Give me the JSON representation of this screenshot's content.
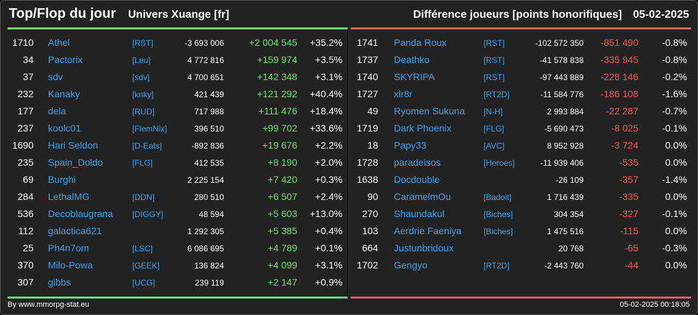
{
  "header": {
    "title": "Top/Flop du jour",
    "subtitle": "Univers Xuange [fr]",
    "metric": "Différence joueurs [points honorifiques]",
    "date": "05-02-2025"
  },
  "colors": {
    "positive": "#6fe26f",
    "negative": "#f05a4f",
    "name": "#3aa3ee",
    "background": "#222222"
  },
  "top": [
    {
      "rank": "1710",
      "name": "Athel",
      "ally": "[RST]",
      "total": "-3 693 006",
      "diff": "+2 004 545",
      "pct": "+35.2%"
    },
    {
      "rank": "34",
      "name": "Pactorix",
      "ally": "[Leu]",
      "total": "4 772 816",
      "diff": "+159 974",
      "pct": "+3.5%"
    },
    {
      "rank": "37",
      "name": "sdv",
      "ally": "[sdv]",
      "total": "4 700 651",
      "diff": "+142 348",
      "pct": "+3.1%"
    },
    {
      "rank": "232",
      "name": "Kanaky",
      "ally": "[knky]",
      "total": "421 439",
      "diff": "+121 292",
      "pct": "+40.4%"
    },
    {
      "rank": "177",
      "name": "dela",
      "ally": "[RUD]",
      "total": "717 988",
      "diff": "+111 476",
      "pct": "+18.4%"
    },
    {
      "rank": "237",
      "name": "koolc01",
      "ally": "[FlemNix]",
      "total": "396 510",
      "diff": "+99 702",
      "pct": "+33.6%"
    },
    {
      "rank": "1690",
      "name": "Hari Seldon",
      "ally": "[D-Eats]",
      "total": "-892 836",
      "diff": "+19 676",
      "pct": "+2.2%"
    },
    {
      "rank": "235",
      "name": "Spain_Doldo",
      "ally": "[FLG]",
      "total": "412 535",
      "diff": "+8 190",
      "pct": "+2.0%"
    },
    {
      "rank": "69",
      "name": "Burghi",
      "ally": "",
      "total": "2 225 154",
      "diff": "+7 420",
      "pct": "+0.3%"
    },
    {
      "rank": "284",
      "name": "LethalMG",
      "ally": "[DDN]",
      "total": "280 510",
      "diff": "+6 507",
      "pct": "+2.4%"
    },
    {
      "rank": "536",
      "name": "Decoblaugrana",
      "ally": "[DIGGY]",
      "total": "48 594",
      "diff": "+5 603",
      "pct": "+13.0%"
    },
    {
      "rank": "112",
      "name": "galactica621",
      "ally": "",
      "total": "1 292 305",
      "diff": "+5 385",
      "pct": "+0.4%"
    },
    {
      "rank": "25",
      "name": "Ph4n7om",
      "ally": "[LSC]",
      "total": "6 086 695",
      "diff": "+4 789",
      "pct": "+0.1%"
    },
    {
      "rank": "370",
      "name": "Milo-Powa",
      "ally": "[GEEK]",
      "total": "136 824",
      "diff": "+4 099",
      "pct": "+3.1%"
    },
    {
      "rank": "307",
      "name": "gibbs",
      "ally": "[UCG]",
      "total": "239 119",
      "diff": "+2 147",
      "pct": "+0.9%"
    }
  ],
  "flop": [
    {
      "rank": "1741",
      "name": "Panda Roux",
      "ally": "[RST]",
      "total": "-102 572 350",
      "diff": "-851 490",
      "pct": "-0.8%"
    },
    {
      "rank": "1737",
      "name": "Deathko",
      "ally": "[RST]",
      "total": "-41 578 838",
      "diff": "-335 945",
      "pct": "-0.8%"
    },
    {
      "rank": "1740",
      "name": "SKYRIPA",
      "ally": "[RST]",
      "total": "-97 443 889",
      "diff": "-228 146",
      "pct": "-0.2%"
    },
    {
      "rank": "1727",
      "name": "xlr8r",
      "ally": "[RT2D]",
      "total": "-11 584 776",
      "diff": "-186 108",
      "pct": "-1.6%"
    },
    {
      "rank": "49",
      "name": "Ryomen Sukuna",
      "ally": "[N-H]",
      "total": "2 993 884",
      "diff": "-22 287",
      "pct": "-0.7%"
    },
    {
      "rank": "1719",
      "name": "Dark Phoenix",
      "ally": "[FLG]",
      "total": "-5 690 473",
      "diff": "-8 025",
      "pct": "-0.1%"
    },
    {
      "rank": "18",
      "name": "Papy33",
      "ally": "[AVC]",
      "total": "8 952 928",
      "diff": "-3 724",
      "pct": "0.0%"
    },
    {
      "rank": "1728",
      "name": "paradeisos",
      "ally": "[Heroes]",
      "total": "-11 939 406",
      "diff": "-535",
      "pct": "0.0%"
    },
    {
      "rank": "1638",
      "name": "Docdouble",
      "ally": "",
      "total": "-26 109",
      "diff": "-357",
      "pct": "-1.4%"
    },
    {
      "rank": "90",
      "name": "CaramelmOu",
      "ally": "[Badoit]",
      "total": "1 716 439",
      "diff": "-335",
      "pct": "0.0%"
    },
    {
      "rank": "270",
      "name": "Shaundakul",
      "ally": "[Biches]",
      "total": "304 354",
      "diff": "-327",
      "pct": "-0.1%"
    },
    {
      "rank": "103",
      "name": "Aerdrie Faeniya",
      "ally": "[Biches]",
      "total": "1 475 516",
      "diff": "-115",
      "pct": "0.0%"
    },
    {
      "rank": "664",
      "name": "Justunbridoux",
      "ally": "",
      "total": "20 768",
      "diff": "-65",
      "pct": "-0.3%"
    },
    {
      "rank": "1702",
      "name": "Gengyo",
      "ally": "[RT2D]",
      "total": "-2 443 760",
      "diff": "-44",
      "pct": "0.0%"
    }
  ],
  "footer": {
    "source": "By www.mmorpg-stat.eu",
    "timestamp": "05-02-2025 00:18:05"
  }
}
